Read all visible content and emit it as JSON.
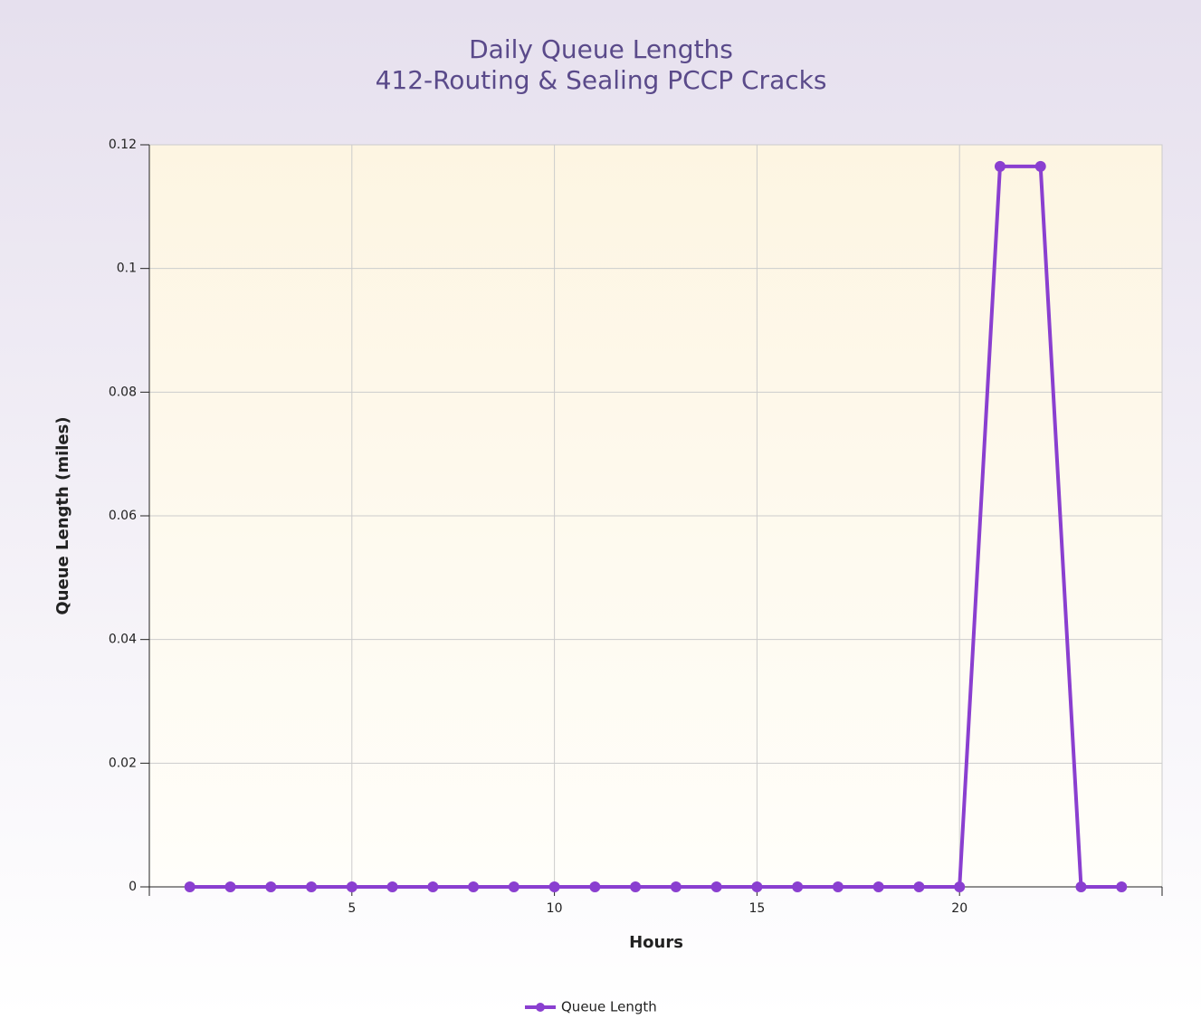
{
  "chart_data": {
    "type": "line",
    "title": "Daily Queue Lengths",
    "subtitle": "412-Routing & Sealing PCCP Cracks",
    "x_label": "Hours",
    "y_label": "Queue Length (miles)",
    "x": [
      1,
      2,
      3,
      4,
      5,
      6,
      7,
      8,
      9,
      10,
      11,
      12,
      13,
      14,
      15,
      16,
      17,
      18,
      19,
      20,
      21,
      22,
      23,
      24
    ],
    "series": [
      {
        "name": "Queue Length",
        "color": "#8a3fd0",
        "values": [
          0,
          0,
          0,
          0,
          0,
          0,
          0,
          0,
          0,
          0,
          0,
          0,
          0,
          0,
          0,
          0,
          0,
          0,
          0,
          0,
          0.1165,
          0.1165,
          0,
          0
        ]
      }
    ],
    "xlim": [
      0,
      25
    ],
    "xticks": [
      5,
      10,
      15,
      20
    ],
    "ylim": [
      0,
      0.12
    ],
    "yticks": [
      0,
      0.02,
      0.04,
      0.06,
      0.08,
      0.1,
      0.12
    ],
    "grid": true,
    "legend": "bottom"
  }
}
